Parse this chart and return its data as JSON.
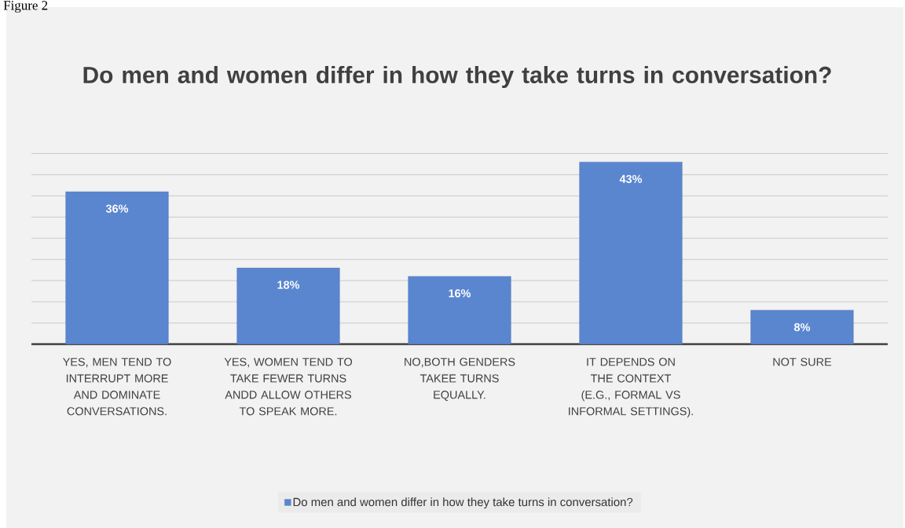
{
  "chart_data": {
    "type": "bar",
    "title": "Do men and women differ in how they take turns in conversation?",
    "categories": [
      "YES, MEN TEND TO INTERRUPT MORE AND DOMINATE CONVERSATIONS.",
      "YES, WOMEN TEND TO TAKE FEWER TURNS ANDD ALLOW OTHERS TO SPEAK MORE.",
      "NO,BOTH GENDERS TAKEE TURNS EQUALLY.",
      "IT DEPENDS ON THE CONTEXT (E.G., FORMAL VS INFORMAL SETTINGS).",
      "NOT SURE"
    ],
    "series": [
      {
        "name": "Do men and women differ in how they take turns in conversation?",
        "color": "#5a86cf",
        "values": [
          36,
          18,
          16,
          43,
          8
        ],
        "value_labels": [
          "36%",
          "18%",
          "16%",
          "43%",
          "8%"
        ]
      }
    ],
    "tick_labels": "x",
    "grid": "y",
    "legend": "bottom",
    "annotations": [
      "Figure 2"
    ]
  }
}
